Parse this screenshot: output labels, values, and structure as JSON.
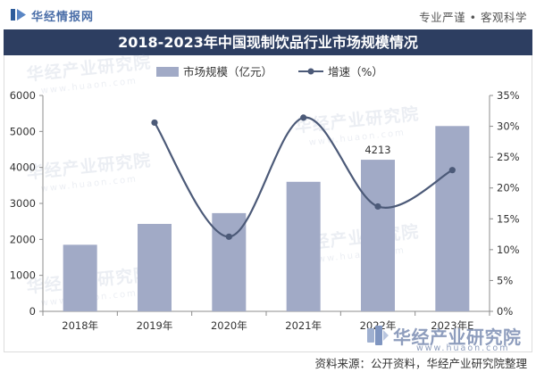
{
  "header": {
    "brand": "华经情报网",
    "slogan": "专业严谨 • 客观科学",
    "logo_icon": "huajing-logo-icon"
  },
  "chart_data": {
    "type": "bar",
    "title": "2018-2023年中国现制饮品行业市场规模情况",
    "categories": [
      "2018年",
      "2019年",
      "2020年",
      "2021年",
      "2022年",
      "2023年E"
    ],
    "series": [
      {
        "name": "市场规模（亿元）",
        "type": "bar",
        "axis": "left",
        "color": "#a1aac6",
        "values": [
          1850,
          2430,
          2730,
          3600,
          4213,
          5150
        ],
        "value_labels": [
          "",
          "",
          "",
          "",
          "4213",
          ""
        ]
      },
      {
        "name": "增速（%）",
        "type": "line",
        "axis": "right",
        "color": "#4c5a78",
        "values": [
          null,
          30.6,
          12.1,
          31.4,
          17.0,
          22.9
        ]
      }
    ],
    "ylim": [
      0,
      6000
    ],
    "y_ticks": [
      "0",
      "1000",
      "2000",
      "3000",
      "4000",
      "5000",
      "6000"
    ],
    "y2lim": [
      0,
      35
    ],
    "y2_ticks": [
      "0%",
      "5%",
      "10%",
      "15%",
      "20%",
      "25%",
      "30%",
      "35%"
    ],
    "grid": false,
    "legend": "top-center",
    "line_style": "smooth"
  },
  "colors": {
    "title_bar": "#2d3e61",
    "brand": "#4a6ea8",
    "watermark": "#8e9dbd"
  },
  "watermark": {
    "name": "华经产业研究院",
    "url": "www.huaon.com"
  },
  "footer": {
    "source": "资料来源：公开资料，华经产业研究院整理"
  }
}
